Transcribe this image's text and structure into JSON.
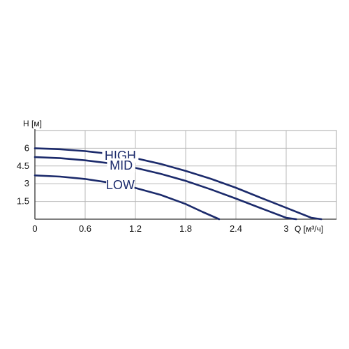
{
  "chart_data": {
    "type": "line",
    "title": "",
    "xlabel": "Q [м³/ч]",
    "ylabel": "H [м]",
    "xlim": [
      0,
      3.6
    ],
    "ylim": [
      0,
      7.5
    ],
    "x_ticks": [
      "0",
      "0.6",
      "1.2",
      "1.8",
      "2.4",
      "3"
    ],
    "x_tick_values": [
      0,
      0.6,
      1.2,
      1.8,
      2.4,
      3.0
    ],
    "y_ticks": [
      "1.5",
      "3",
      "4.5",
      "6"
    ],
    "y_tick_values": [
      1.5,
      3,
      4.5,
      6
    ],
    "grid": true,
    "line_color": "#1b2a6b",
    "series": [
      {
        "name": "HIGH",
        "x": [
          0,
          0.3,
          0.6,
          0.9,
          1.2,
          1.5,
          1.8,
          2.1,
          2.4,
          2.7,
          3.0,
          3.3,
          3.42
        ],
        "y": [
          6.0,
          5.92,
          5.76,
          5.52,
          5.16,
          4.68,
          4.08,
          3.42,
          2.66,
          1.8,
          0.96,
          0.12,
          0
        ]
      },
      {
        "name": "MID",
        "x": [
          0,
          0.3,
          0.6,
          0.9,
          1.2,
          1.5,
          1.8,
          2.1,
          2.4,
          2.7,
          3.0,
          3.12
        ],
        "y": [
          5.25,
          5.16,
          4.98,
          4.72,
          4.34,
          3.84,
          3.24,
          2.52,
          1.74,
          0.92,
          0.12,
          0
        ]
      },
      {
        "name": "LOW",
        "x": [
          0,
          0.3,
          0.6,
          0.9,
          1.2,
          1.5,
          1.8,
          2.0,
          2.2
        ],
        "y": [
          3.7,
          3.6,
          3.4,
          3.08,
          2.64,
          2.06,
          1.28,
          0.62,
          0
        ]
      }
    ]
  }
}
